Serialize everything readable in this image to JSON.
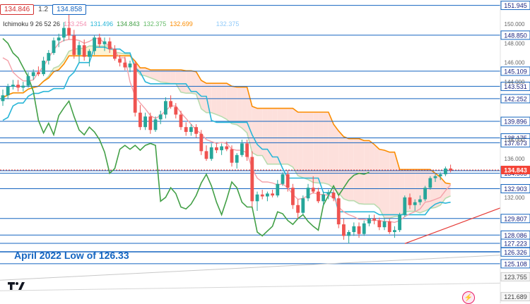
{
  "header": {
    "bid_price": "134.846",
    "spread": "1.2",
    "ask_price": "134.858"
  },
  "ichimoku_legend": {
    "label": "Ichimoku 9 26 52 26",
    "values": [
      {
        "text": "133.254",
        "color": "#f48fb1"
      },
      {
        "text": "131.496",
        "color": "#29b6d8"
      },
      {
        "text": "134.843",
        "color": "#43a047"
      },
      {
        "text": "132.375",
        "color": "#66bb6a"
      },
      {
        "text": "132.699",
        "color": "#fb8c00"
      },
      {
        "text": "132.375",
        "color": "#90caf9"
      }
    ]
  },
  "annotation": {
    "text": "April 2022 Low of 126.33",
    "color": "#1565c0"
  },
  "colors": {
    "up": "#26a69a",
    "down": "#ef5350",
    "level_line": "#1565c0",
    "tenkan": "#f4a0a8",
    "kijun": "#29b6d8",
    "chikou": "#43a047",
    "span_a": "#b9dcb0",
    "span_b": "#fb8c00",
    "cloud_bull": "#fdf3d4",
    "cloud_bear": "#fde0dc",
    "current_price": "#f44336"
  },
  "chart_data": {
    "type": "candlestick",
    "y_range": [
      121.0,
      152.5
    ],
    "axis_ticks": [
      "150.000",
      "148.000",
      "146.000",
      "144.000",
      "138.000",
      "136.000",
      "132.000",
      "124.000"
    ],
    "levels": [
      151.945,
      148.85,
      145.109,
      143.531,
      142.252,
      139.896,
      138.175,
      137.673,
      134.774,
      134.503,
      132.903,
      129.807,
      128.086,
      127.223,
      126.362,
      126.326,
      125.108
    ],
    "current_price": 134.843,
    "extra_labels": [
      {
        "text": "123.755",
        "value": 123.755,
        "color": "#9e9e9e"
      },
      {
        "text": "121.689",
        "value": 121.689,
        "color": "#9e9e9e"
      }
    ],
    "trendline": {
      "from_index": 79,
      "from_value": 127.2,
      "to_value": 130.9
    },
    "candles": [
      {
        "o": 142.0,
        "h": 143.2,
        "l": 141.5,
        "c": 142.6
      },
      {
        "o": 142.6,
        "h": 143.8,
        "l": 142.2,
        "c": 143.5
      },
      {
        "o": 143.5,
        "h": 144.2,
        "l": 143.2,
        "c": 143.7
      },
      {
        "o": 143.7,
        "h": 144.2,
        "l": 143.0,
        "c": 143.4
      },
      {
        "o": 143.4,
        "h": 144.0,
        "l": 143.0,
        "c": 143.6
      },
      {
        "o": 143.6,
        "h": 145.0,
        "l": 143.4,
        "c": 144.6
      },
      {
        "o": 144.6,
        "h": 145.3,
        "l": 144.2,
        "c": 145.0
      },
      {
        "o": 145.0,
        "h": 145.6,
        "l": 144.6,
        "c": 144.8
      },
      {
        "o": 144.8,
        "h": 146.6,
        "l": 144.6,
        "c": 146.2
      },
      {
        "o": 146.2,
        "h": 147.3,
        "l": 145.8,
        "c": 147.0
      },
      {
        "o": 147.0,
        "h": 148.6,
        "l": 146.8,
        "c": 148.3
      },
      {
        "o": 148.3,
        "h": 149.0,
        "l": 147.6,
        "c": 148.6
      },
      {
        "o": 148.6,
        "h": 150.2,
        "l": 148.2,
        "c": 149.6
      },
      {
        "o": 149.6,
        "h": 151.9,
        "l": 148.4,
        "c": 148.8
      },
      {
        "o": 148.8,
        "h": 149.4,
        "l": 146.4,
        "c": 146.8
      },
      {
        "o": 146.8,
        "h": 148.2,
        "l": 146.0,
        "c": 147.8
      },
      {
        "o": 147.8,
        "h": 148.4,
        "l": 146.2,
        "c": 146.6
      },
      {
        "o": 146.6,
        "h": 147.4,
        "l": 145.6,
        "c": 147.2
      },
      {
        "o": 147.2,
        "h": 148.8,
        "l": 146.8,
        "c": 148.6
      },
      {
        "o": 148.6,
        "h": 149.0,
        "l": 147.6,
        "c": 147.9
      },
      {
        "o": 147.9,
        "h": 148.6,
        "l": 147.2,
        "c": 148.2
      },
      {
        "o": 148.2,
        "h": 148.6,
        "l": 147.0,
        "c": 147.4
      },
      {
        "o": 147.4,
        "h": 147.8,
        "l": 146.2,
        "c": 146.4
      },
      {
        "o": 146.4,
        "h": 146.8,
        "l": 145.6,
        "c": 146.0
      },
      {
        "o": 146.0,
        "h": 146.6,
        "l": 145.2,
        "c": 145.5
      },
      {
        "o": 145.5,
        "h": 146.2,
        "l": 145.0,
        "c": 145.9
      },
      {
        "o": 145.9,
        "h": 146.2,
        "l": 140.4,
        "c": 140.8
      },
      {
        "o": 140.8,
        "h": 141.6,
        "l": 139.0,
        "c": 139.3
      },
      {
        "o": 139.3,
        "h": 140.8,
        "l": 139.0,
        "c": 140.4
      },
      {
        "o": 140.4,
        "h": 140.8,
        "l": 138.6,
        "c": 139.0
      },
      {
        "o": 139.0,
        "h": 140.4,
        "l": 138.8,
        "c": 140.1
      },
      {
        "o": 140.1,
        "h": 141.0,
        "l": 139.6,
        "c": 140.6
      },
      {
        "o": 140.6,
        "h": 142.4,
        "l": 140.2,
        "c": 142.0
      },
      {
        "o": 142.0,
        "h": 142.6,
        "l": 141.2,
        "c": 141.4
      },
      {
        "o": 141.4,
        "h": 141.8,
        "l": 140.2,
        "c": 140.6
      },
      {
        "o": 140.6,
        "h": 141.0,
        "l": 139.0,
        "c": 139.3
      },
      {
        "o": 139.3,
        "h": 139.8,
        "l": 138.4,
        "c": 138.8
      },
      {
        "o": 138.8,
        "h": 139.6,
        "l": 138.4,
        "c": 139.3
      },
      {
        "o": 139.3,
        "h": 139.6,
        "l": 138.2,
        "c": 138.6
      },
      {
        "o": 138.6,
        "h": 139.0,
        "l": 136.4,
        "c": 136.8
      },
      {
        "o": 136.8,
        "h": 137.4,
        "l": 135.8,
        "c": 136.0
      },
      {
        "o": 136.0,
        "h": 137.6,
        "l": 135.8,
        "c": 137.2
      },
      {
        "o": 137.2,
        "h": 137.6,
        "l": 136.6,
        "c": 136.9
      },
      {
        "o": 136.9,
        "h": 137.6,
        "l": 136.4,
        "c": 137.3
      },
      {
        "o": 137.3,
        "h": 137.8,
        "l": 136.8,
        "c": 137.0
      },
      {
        "o": 137.0,
        "h": 137.4,
        "l": 135.2,
        "c": 135.6
      },
      {
        "o": 135.6,
        "h": 136.6,
        "l": 135.0,
        "c": 136.4
      },
      {
        "o": 136.4,
        "h": 138.0,
        "l": 136.2,
        "c": 137.6
      },
      {
        "o": 137.6,
        "h": 138.0,
        "l": 135.8,
        "c": 136.2
      },
      {
        "o": 136.2,
        "h": 136.8,
        "l": 131.0,
        "c": 131.6
      },
      {
        "o": 131.6,
        "h": 132.6,
        "l": 130.6,
        "c": 132.3
      },
      {
        "o": 132.3,
        "h": 132.8,
        "l": 131.8,
        "c": 132.1
      },
      {
        "o": 132.1,
        "h": 132.6,
        "l": 131.6,
        "c": 132.4
      },
      {
        "o": 132.4,
        "h": 132.8,
        "l": 132.0,
        "c": 132.2
      },
      {
        "o": 132.2,
        "h": 133.8,
        "l": 132.0,
        "c": 133.4
      },
      {
        "o": 133.4,
        "h": 134.6,
        "l": 133.2,
        "c": 134.4
      },
      {
        "o": 134.4,
        "h": 134.8,
        "l": 132.6,
        "c": 133.0
      },
      {
        "o": 133.0,
        "h": 133.4,
        "l": 130.8,
        "c": 131.2
      },
      {
        "o": 131.2,
        "h": 131.8,
        "l": 129.8,
        "c": 130.4
      },
      {
        "o": 130.4,
        "h": 132.2,
        "l": 130.2,
        "c": 131.9
      },
      {
        "o": 131.9,
        "h": 133.4,
        "l": 131.6,
        "c": 133.0
      },
      {
        "o": 133.0,
        "h": 134.2,
        "l": 132.4,
        "c": 132.6
      },
      {
        "o": 132.6,
        "h": 133.0,
        "l": 131.4,
        "c": 131.6
      },
      {
        "o": 131.6,
        "h": 132.6,
        "l": 131.2,
        "c": 132.3
      },
      {
        "o": 132.3,
        "h": 132.8,
        "l": 131.8,
        "c": 132.5
      },
      {
        "o": 132.5,
        "h": 132.8,
        "l": 131.6,
        "c": 131.9
      },
      {
        "o": 131.9,
        "h": 132.2,
        "l": 128.8,
        "c": 129.2
      },
      {
        "o": 129.2,
        "h": 129.8,
        "l": 127.6,
        "c": 128.0
      },
      {
        "o": 128.0,
        "h": 128.6,
        "l": 127.2,
        "c": 128.4
      },
      {
        "o": 128.4,
        "h": 129.4,
        "l": 128.0,
        "c": 129.0
      },
      {
        "o": 129.0,
        "h": 129.4,
        "l": 127.8,
        "c": 128.2
      },
      {
        "o": 128.2,
        "h": 129.6,
        "l": 128.0,
        "c": 129.3
      },
      {
        "o": 129.3,
        "h": 130.2,
        "l": 129.0,
        "c": 129.8
      },
      {
        "o": 129.8,
        "h": 130.2,
        "l": 129.2,
        "c": 129.6
      },
      {
        "o": 129.6,
        "h": 129.9,
        "l": 128.6,
        "c": 128.9
      },
      {
        "o": 128.9,
        "h": 129.8,
        "l": 128.6,
        "c": 129.5
      },
      {
        "o": 129.5,
        "h": 129.8,
        "l": 128.2,
        "c": 128.4
      },
      {
        "o": 128.4,
        "h": 129.0,
        "l": 127.8,
        "c": 128.6
      },
      {
        "o": 128.6,
        "h": 130.4,
        "l": 128.4,
        "c": 130.2
      },
      {
        "o": 130.2,
        "h": 132.2,
        "l": 130.0,
        "c": 132.0
      },
      {
        "o": 132.0,
        "h": 132.4,
        "l": 130.8,
        "c": 131.2
      },
      {
        "o": 131.2,
        "h": 131.8,
        "l": 130.6,
        "c": 131.5
      },
      {
        "o": 131.5,
        "h": 132.2,
        "l": 131.2,
        "c": 131.8
      },
      {
        "o": 131.8,
        "h": 133.2,
        "l": 131.6,
        "c": 133.0
      },
      {
        "o": 133.0,
        "h": 134.2,
        "l": 132.8,
        "c": 134.0
      },
      {
        "o": 134.0,
        "h": 134.4,
        "l": 133.6,
        "c": 134.2
      },
      {
        "o": 134.2,
        "h": 134.6,
        "l": 133.8,
        "c": 134.4
      },
      {
        "o": 134.4,
        "h": 135.2,
        "l": 134.2,
        "c": 135.0
      },
      {
        "o": 135.0,
        "h": 135.4,
        "l": 134.6,
        "c": 134.8
      }
    ],
    "tenkan": [
      146.5,
      146.2,
      145.0,
      144.5,
      144.1,
      144.1,
      144.2,
      145.0,
      145.6,
      146.5,
      147.3,
      148.0,
      148.3,
      148.4,
      148.4,
      148.3,
      148.0,
      148.2,
      148.5,
      148.5,
      148.0,
      147.8,
      147.2,
      146.5,
      146.5,
      144.0,
      142.5,
      141.8,
      141.2,
      140.5,
      140.2,
      140.5,
      141.0,
      141.5,
      141.5,
      140.8,
      140.2,
      139.6,
      139.0,
      138.6,
      138.0,
      137.8,
      137.6,
      137.7,
      137.6,
      137.0,
      136.9,
      136.9,
      136.6,
      135.0,
      134.0,
      133.6,
      133.6,
      133.5,
      133.3,
      133.4,
      133.0,
      132.3,
      131.8,
      131.9,
      132.2,
      132.5,
      132.3,
      132.3,
      132.2,
      132.0,
      131.0,
      130.5,
      130.2,
      130.0,
      129.7,
      129.7,
      129.6,
      129.6,
      129.6,
      129.5,
      129.5,
      129.4,
      129.6,
      130.0,
      130.3,
      130.5,
      130.8,
      131.5,
      131.6,
      131.8,
      132.0,
      132.7,
      133.3
    ],
    "kijun": [
      140.0,
      140.3,
      141.5,
      141.8,
      141.8,
      142.5,
      142.8,
      142.8,
      143.0,
      143.0,
      143.3,
      143.3,
      143.3,
      144.5,
      145.0,
      146.0,
      146.0,
      146.0,
      147.6,
      147.6,
      147.6,
      147.4,
      147.4,
      147.4,
      147.0,
      147.0,
      145.5,
      145.0,
      144.0,
      143.8,
      143.8,
      143.8,
      143.8,
      143.8,
      143.8,
      143.8,
      143.8,
      143.0,
      143.0,
      142.5,
      142.5,
      140.0,
      139.8,
      139.8,
      139.8,
      139.8,
      139.8,
      139.8,
      139.8,
      138.5,
      137.5,
      137.0,
      137.0,
      136.2,
      136.2,
      135.0,
      134.0,
      134.0,
      134.0,
      134.0,
      134.0,
      134.0,
      134.0,
      132.5,
      132.5,
      132.5,
      130.5,
      130.5,
      130.5,
      130.5,
      130.5,
      130.5,
      130.5,
      130.5,
      130.2,
      130.2,
      130.2,
      130.2,
      130.2,
      130.2,
      130.2,
      130.2,
      130.2,
      130.2,
      130.9,
      131.3,
      131.5,
      131.4,
      131.5
    ],
    "chikou": [
      148.5,
      148.0,
      147.0,
      146.5,
      145.5,
      144.5,
      143.0,
      140.0,
      138.7,
      139.7,
      138.5,
      140.5,
      141.3,
      142.0,
      140.4,
      139.0,
      138.5,
      139.3,
      138.8,
      138.0,
      136.7,
      134.5,
      135.0,
      137.0,
      137.4,
      137.0,
      137.4,
      136.9,
      137.4,
      137.6,
      137.4,
      131.6,
      132.0,
      133.0,
      132.4,
      131.0,
      130.8,
      131.3,
      132.2,
      133.5,
      134.4,
      133.2,
      131.5,
      130.2,
      131.8,
      133.6,
      133.0,
      131.5,
      131.0,
      131.0,
      128.4,
      128.0,
      128.5,
      129.0,
      130.5,
      130.3,
      129.6,
      129.2,
      129.8,
      130.2,
      129.5,
      129.0,
      128.6,
      131.2,
      132.2,
      133.2,
      132.2,
      133.0,
      133.8,
      134.3,
      134.5,
      134.4,
      134.6
    ]
  }
}
